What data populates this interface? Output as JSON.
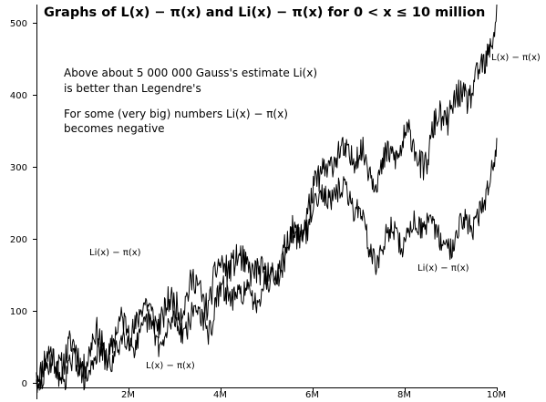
{
  "chart_data": {
    "type": "line",
    "title": "Graphs of L(x) − π(x) and Li(x) − π(x) for  0 < x ≤ 10 million",
    "annotations": [
      "Above about 5 000 000 Gauss's estimate Li(x)",
      "is better than Legendre's",
      "For some (very big) numbers Li(x) − π(x)",
      "becomes negative"
    ],
    "x_tick_labels": [
      "2M",
      "4M",
      "6M",
      "8M",
      "10M"
    ],
    "x_ticks": [
      2000000,
      4000000,
      6000000,
      8000000,
      10000000
    ],
    "y_tick_labels": [
      "0",
      "100",
      "200",
      "300",
      "400",
      "500"
    ],
    "y_ticks": [
      0,
      100,
      200,
      300,
      400,
      500
    ],
    "xlim": [
      0,
      10000000
    ],
    "ylim": [
      -25,
      525
    ],
    "grid": false,
    "series": [
      {
        "name": "L(x) − π(x)",
        "labels": [
          "L(x) − π(x)",
          "L(x) − π(x)"
        ],
        "color": "#000000",
        "x": [
          0,
          250000,
          500000,
          750000,
          1000000,
          1250000,
          1500000,
          1750000,
          2000000,
          2250000,
          2500000,
          2750000,
          3000000,
          3250000,
          3500000,
          3750000,
          4000000,
          4250000,
          4500000,
          4750000,
          5000000,
          5250000,
          5500000,
          5750000,
          6000000,
          6250000,
          6500000,
          6750000,
          7000000,
          7250000,
          7500000,
          7750000,
          8000000,
          8250000,
          8500000,
          8750000,
          9000000,
          9250000,
          9500000,
          9750000,
          10000000
        ],
        "values": [
          15,
          30,
          35,
          45,
          30,
          60,
          45,
          70,
          80,
          95,
          100,
          90,
          110,
          120,
          135,
          115,
          160,
          175,
          155,
          170,
          130,
          165,
          195,
          220,
          250,
          310,
          300,
          330,
          310,
          300,
          290,
          320,
          340,
          320,
          310,
          370,
          380,
          390,
          420,
          430,
          525
        ]
      },
      {
        "name": "Li(x) − π(x)",
        "labels": [
          "Li(x) − π(x)",
          "Li(x) − π(x)"
        ],
        "color": "#000000",
        "x": [
          0,
          250000,
          500000,
          750000,
          1000000,
          1250000,
          1500000,
          1750000,
          2000000,
          2250000,
          2500000,
          2750000,
          3000000,
          3250000,
          3500000,
          3750000,
          4000000,
          4250000,
          4500000,
          4750000,
          5000000,
          5250000,
          5500000,
          5750000,
          6000000,
          6250000,
          6500000,
          6750000,
          7000000,
          7250000,
          7500000,
          7750000,
          8000000,
          8250000,
          8500000,
          8750000,
          9000000,
          9250000,
          9500000,
          9750000,
          10000000
        ],
        "values": [
          5,
          20,
          15,
          25,
          10,
          35,
          30,
          50,
          55,
          70,
          75,
          60,
          80,
          85,
          95,
          80,
          120,
          130,
          115,
          125,
          140,
          165,
          190,
          210,
          235,
          270,
          255,
          265,
          245,
          175,
          185,
          210,
          200,
          215,
          230,
          190,
          200,
          215,
          230,
          240,
          340
        ]
      }
    ]
  }
}
